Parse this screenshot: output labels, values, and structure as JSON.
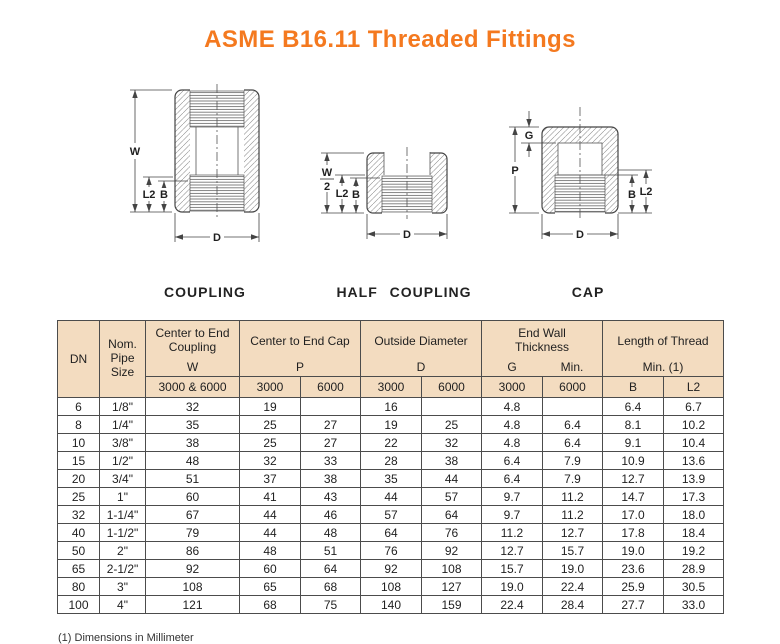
{
  "page": {
    "title": "ASME B16.11 Threaded Fittings",
    "note": "(1) Dimensions in Millimeter",
    "accent_color": "#f4791f",
    "header_bg": "#f3dcc0",
    "shade_bg": "#d8d8d8"
  },
  "figures": {
    "coupling": {
      "label": "COUPLING",
      "dims": {
        "w": "W",
        "l2": "L2",
        "b": "B",
        "d": "D"
      }
    },
    "half_coupling": {
      "label": "HALF COUPLING",
      "dims": {
        "w_num": "W",
        "w_den": "2",
        "l2": "L2",
        "b": "B",
        "d": "D"
      }
    },
    "cap": {
      "label": "CAP",
      "dims": {
        "g": "G",
        "p": "P",
        "b": "B",
        "l2": "L2",
        "d": "D"
      }
    }
  },
  "table": {
    "header": {
      "dn": "DN",
      "pipe_size": "Nom.\nPipe\nSize",
      "groups": [
        {
          "title": "Center to End\nCoupling",
          "letter": "W",
          "subs": [
            "3000 & 6000"
          ]
        },
        {
          "title": "Center to End Cap",
          "letter": "P",
          "subs": [
            "3000",
            "6000"
          ]
        },
        {
          "title": "Outside Diameter",
          "letter": "D",
          "subs": [
            "3000",
            "6000"
          ]
        },
        {
          "title": "End Wall\nThickness",
          "letter_left": "G",
          "letter_right": "Min.",
          "subs": [
            "3000",
            "6000"
          ]
        },
        {
          "title": "Length of Thread",
          "letter": "Min. (1)",
          "subs": [
            "B",
            "L2"
          ]
        }
      ]
    },
    "columns": [
      "dn",
      "size",
      "w",
      "p3000",
      "p6000",
      "d3000",
      "d6000",
      "g3000",
      "g6000",
      "b",
      "l2"
    ],
    "rows": [
      {
        "dn": "6",
        "size": "1/8\"",
        "w": "32",
        "p3000": "19",
        "p6000": null,
        "d3000": "16",
        "d6000": null,
        "g3000": "4.8",
        "g6000": null,
        "b": "6.4",
        "l2": "6.7"
      },
      {
        "dn": "8",
        "size": "1/4\"",
        "w": "35",
        "p3000": "25",
        "p6000": "27",
        "d3000": "19",
        "d6000": "25",
        "g3000": "4.8",
        "g6000": "6.4",
        "b": "8.1",
        "l2": "10.2"
      },
      {
        "dn": "10",
        "size": "3/8\"",
        "w": "38",
        "p3000": "25",
        "p6000": "27",
        "d3000": "22",
        "d6000": "32",
        "g3000": "4.8",
        "g6000": "6.4",
        "b": "9.1",
        "l2": "10.4"
      },
      {
        "dn": "15",
        "size": "1/2\"",
        "w": "48",
        "p3000": "32",
        "p6000": "33",
        "d3000": "28",
        "d6000": "38",
        "g3000": "6.4",
        "g6000": "7.9",
        "b": "10.9",
        "l2": "13.6"
      },
      {
        "dn": "20",
        "size": "3/4\"",
        "w": "51",
        "p3000": "37",
        "p6000": "38",
        "d3000": "35",
        "d6000": "44",
        "g3000": "6.4",
        "g6000": "7.9",
        "b": "12.7",
        "l2": "13.9"
      },
      {
        "dn": "25",
        "size": "1\"",
        "w": "60",
        "p3000": "41",
        "p6000": "43",
        "d3000": "44",
        "d6000": "57",
        "g3000": "9.7",
        "g6000": "11.2",
        "b": "14.7",
        "l2": "17.3"
      },
      {
        "dn": "32",
        "size": "1-1/4\"",
        "w": "67",
        "p3000": "44",
        "p6000": "46",
        "d3000": "57",
        "d6000": "64",
        "g3000": "9.7",
        "g6000": "11.2",
        "b": "17.0",
        "l2": "18.0"
      },
      {
        "dn": "40",
        "size": "1-1/2\"",
        "w": "79",
        "p3000": "44",
        "p6000": "48",
        "d3000": "64",
        "d6000": "76",
        "g3000": "11.2",
        "g6000": "12.7",
        "b": "17.8",
        "l2": "18.4"
      },
      {
        "dn": "50",
        "size": "2\"",
        "w": "86",
        "p3000": "48",
        "p6000": "51",
        "d3000": "76",
        "d6000": "92",
        "g3000": "12.7",
        "g6000": "15.7",
        "b": "19.0",
        "l2": "19.2"
      },
      {
        "dn": "65",
        "size": "2-1/2\"",
        "w": "92",
        "p3000": "60",
        "p6000": "64",
        "d3000": "92",
        "d6000": "108",
        "g3000": "15.7",
        "g6000": "19.0",
        "b": "23.6",
        "l2": "28.9"
      },
      {
        "dn": "80",
        "size": "3\"",
        "w": "108",
        "p3000": "65",
        "p6000": "68",
        "d3000": "108",
        "d6000": "127",
        "g3000": "19.0",
        "g6000": "22.4",
        "b": "25.9",
        "l2": "30.5"
      },
      {
        "dn": "100",
        "size": "4\"",
        "w": "121",
        "p3000": "68",
        "p6000": "75",
        "d3000": "140",
        "d6000": "159",
        "g3000": "22.4",
        "g6000": "28.4",
        "b": "27.7",
        "l2": "33.0"
      }
    ]
  }
}
